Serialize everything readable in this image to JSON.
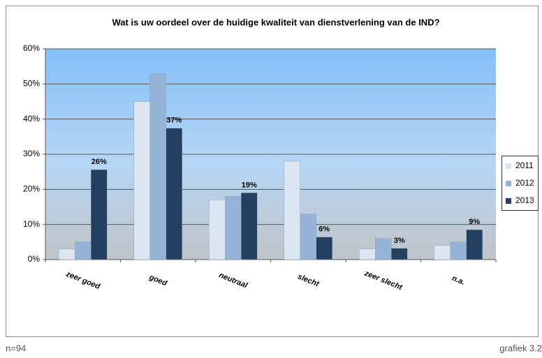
{
  "chart_data": {
    "type": "bar",
    "title": "Wat is uw oordeel over de huidige kwaliteit van dienstverlening van de IND?",
    "categories": [
      "zeer goed",
      "goed",
      "neutraal",
      "slecht",
      "zeer slecht",
      "n.a."
    ],
    "series": [
      {
        "name": "2011",
        "color": "#dce6f2",
        "values": [
          3,
          45,
          17,
          28,
          3,
          4
        ]
      },
      {
        "name": "2012",
        "color": "#95b3d7",
        "values": [
          5,
          53,
          18,
          13,
          6,
          5
        ]
      },
      {
        "name": "2013",
        "color": "#243f60",
        "values": [
          25.6,
          37.4,
          19,
          6.4,
          3.2,
          8.5
        ],
        "value_labels": [
          "26%",
          "37%",
          "19%",
          "6%",
          "3%",
          "9%"
        ]
      }
    ],
    "ylim": [
      0,
      60
    ],
    "yticks": [
      {
        "value": 0,
        "label": "0%"
      },
      {
        "value": 10,
        "label": "10%"
      },
      {
        "value": 20,
        "label": "20%"
      },
      {
        "value": 30,
        "label": "30%"
      },
      {
        "value": 40,
        "label": "40%"
      },
      {
        "value": 50,
        "label": "50%"
      },
      {
        "value": 60,
        "label": "60%"
      }
    ],
    "grid": true,
    "legend": "right",
    "note_left": "n=94",
    "note_right": "grafiek 3.2"
  }
}
